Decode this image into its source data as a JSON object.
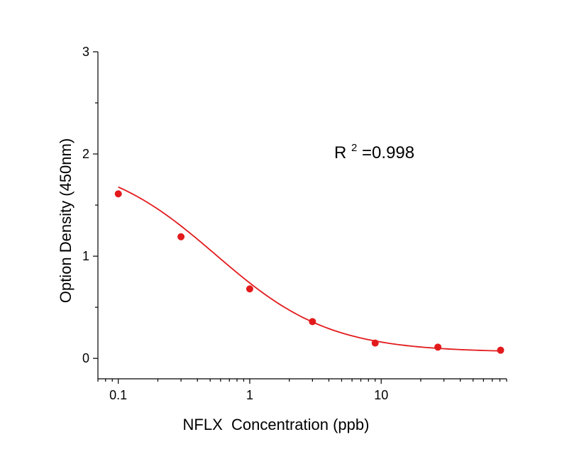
{
  "chart_data": {
    "type": "scatter",
    "title": "",
    "xlabel": "NFLX  Concentration (ppb)",
    "ylabel": "Option Density (450nm)",
    "x_scale": "log",
    "xlim": [
      0.07,
      90
    ],
    "ylim": [
      -0.2,
      3
    ],
    "x_ticks": [
      0.1,
      1,
      10
    ],
    "x_tick_labels": [
      "0.1",
      "1",
      "10"
    ],
    "y_ticks": [
      0,
      1,
      2,
      3
    ],
    "y_tick_labels": [
      "0",
      "1",
      "2",
      "3"
    ],
    "grid": false,
    "legend": "none",
    "colors": {
      "series": "#e31a1c",
      "axis": "#000000"
    },
    "annotation": {
      "base": "R",
      "sup": "2",
      "rest": "=0.998"
    },
    "series": [
      {
        "kind": "points",
        "x": [
          0.1,
          0.3,
          1,
          3,
          9,
          27,
          81
        ],
        "y": [
          1.61,
          1.19,
          0.68,
          0.36,
          0.15,
          0.11,
          0.08
        ]
      },
      {
        "kind": "fit-curve",
        "model": "four-parameter-logistic",
        "params": {
          "top": 1.97,
          "bottom": 0.06,
          "ec50": 0.55,
          "hill": 1.0
        }
      }
    ]
  }
}
